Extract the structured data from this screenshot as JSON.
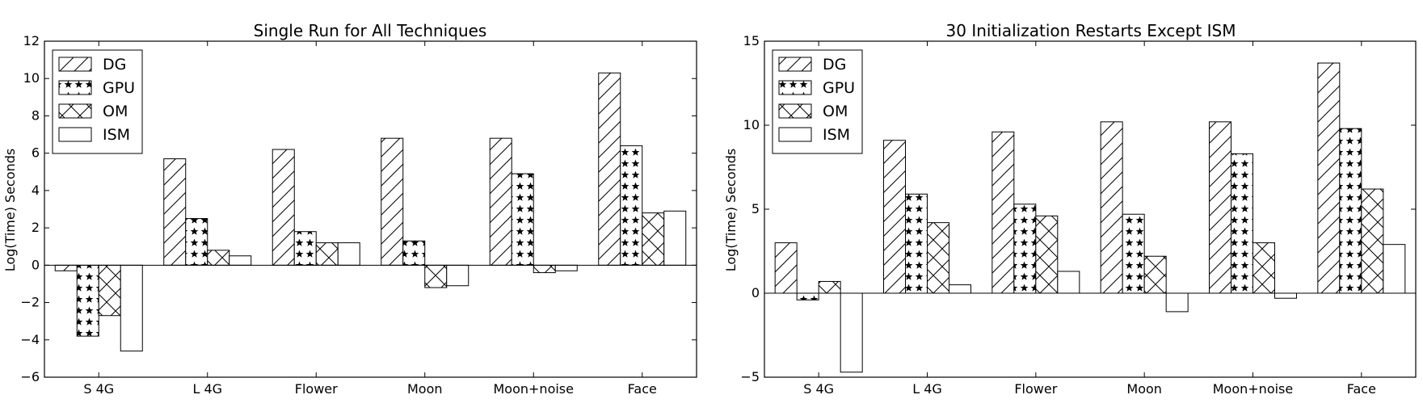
{
  "chart_data": [
    {
      "type": "bar",
      "title": "Single Run for All Techniques",
      "xlabel": "",
      "ylabel": "Log(Time) Seconds",
      "ylim": [
        -6,
        12
      ],
      "yticks": [
        -6,
        -4,
        -2,
        0,
        2,
        4,
        6,
        8,
        10,
        12
      ],
      "grid": false,
      "legend_position": "top-left",
      "categories": [
        "S 4G",
        "L 4G",
        "Flower",
        "Moon",
        "Moon+noise",
        "Face"
      ],
      "series": [
        {
          "name": "DG",
          "pattern": "diagonal-hatch",
          "values": [
            -0.3,
            5.7,
            6.2,
            6.8,
            6.8,
            10.3
          ]
        },
        {
          "name": "GPU",
          "pattern": "star-hatch",
          "values": [
            -3.8,
            2.5,
            1.8,
            1.3,
            4.9,
            6.4
          ]
        },
        {
          "name": "OM",
          "pattern": "cross-hatch",
          "values": [
            -2.7,
            0.8,
            1.2,
            -1.2,
            -0.4,
            2.8
          ]
        },
        {
          "name": "ISM",
          "pattern": "none",
          "values": [
            -4.6,
            0.5,
            1.2,
            -1.1,
            -0.3,
            2.9
          ]
        }
      ]
    },
    {
      "type": "bar",
      "title": "30 Initialization Restarts Except ISM",
      "xlabel": "",
      "ylabel": "Log(Time) Seconds",
      "ylim": [
        -5,
        15
      ],
      "yticks": [
        -5,
        0,
        5,
        10,
        15
      ],
      "grid": false,
      "legend_position": "top-left",
      "categories": [
        "S 4G",
        "L 4G",
        "Flower",
        "Moon",
        "Moon+noise",
        "Face"
      ],
      "series": [
        {
          "name": "DG",
          "pattern": "diagonal-hatch",
          "values": [
            3.0,
            9.1,
            9.6,
            10.2,
            10.2,
            13.7
          ]
        },
        {
          "name": "GPU",
          "pattern": "star-hatch",
          "values": [
            -0.4,
            5.9,
            5.3,
            4.7,
            8.3,
            9.8
          ]
        },
        {
          "name": "OM",
          "pattern": "cross-hatch",
          "values": [
            0.7,
            4.2,
            4.6,
            2.2,
            3.0,
            6.2
          ]
        },
        {
          "name": "ISM",
          "pattern": "none",
          "values": [
            -4.7,
            0.5,
            1.3,
            -1.1,
            -0.3,
            2.9
          ]
        }
      ]
    }
  ]
}
